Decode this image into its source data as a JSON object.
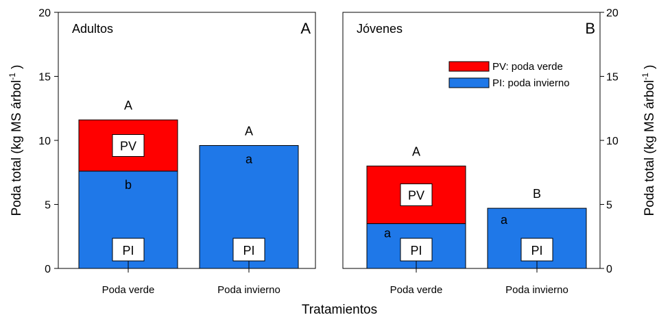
{
  "chart_data": {
    "type": "bar",
    "stacked": true,
    "xlabel": "Tratamientos",
    "ylabel": "Poda total (kg MS árbol",
    "ylabel_sup": "-1",
    "ylabel_end": " )",
    "ylim": [
      0,
      20
    ],
    "yticks": [
      0,
      5,
      10,
      15,
      20
    ],
    "legend": {
      "placement": "top-right of panel B",
      "entries": [
        {
          "label": "PV: poda verde",
          "color": "#ff0000"
        },
        {
          "label": "PI: poda invierno",
          "color": "#1f78e8"
        }
      ]
    },
    "colors": {
      "PV": "#ff0000",
      "PI": "#1f78e8"
    },
    "panels": [
      {
        "title": "Adultos",
        "tag": "A",
        "categories": [
          "Poda verde",
          "Poda invierno"
        ],
        "series": [
          {
            "name": "PI",
            "values": [
              7.6,
              9.6
            ]
          },
          {
            "name": "PV",
            "values": [
              4.0,
              0
            ]
          }
        ],
        "top_letters": [
          "A",
          "A"
        ],
        "pi_letters": [
          "b",
          "a"
        ],
        "box_labels": {
          "pv": "PV",
          "pi": "PI"
        }
      },
      {
        "title": "Jóvenes",
        "tag": "B",
        "categories": [
          "Poda verde",
          "Poda invierno"
        ],
        "series": [
          {
            "name": "PI",
            "values": [
              3.5,
              4.7
            ]
          },
          {
            "name": "PV",
            "values": [
              4.5,
              0
            ]
          }
        ],
        "top_letters": [
          "A",
          "B"
        ],
        "pi_letters": [
          "a",
          "a"
        ],
        "box_labels": {
          "pv": "PV",
          "pi": "PI"
        }
      }
    ]
  }
}
